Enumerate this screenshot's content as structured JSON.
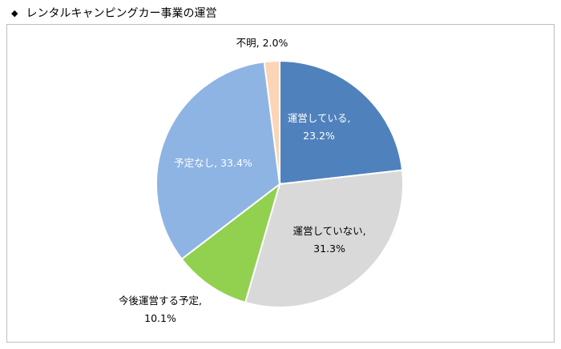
{
  "title": "レンタルキャンピングカー事業の運営",
  "title_bullet": "◆",
  "chart_data": {
    "type": "pie",
    "title": "レンタルキャンピングカー事業の運営",
    "start_angle_deg": 0,
    "direction": "clockwise",
    "slices": [
      {
        "label": "運営している",
        "value": 23.2,
        "value_text": "23.2%",
        "color": "#4f81bd",
        "text_color": "#ffffff",
        "label_inside": true
      },
      {
        "label": "運営していない",
        "value": 31.3,
        "value_text": "31.3%",
        "color": "#d9d9d9",
        "text_color": "#000000",
        "label_inside": true
      },
      {
        "label": "今後運営する予定",
        "value": 10.1,
        "value_text": "10.1%",
        "color": "#92d050",
        "text_color": "#000000",
        "label_inside": false
      },
      {
        "label": "予定なし",
        "value": 33.4,
        "value_text": "33.4%",
        "color": "#8eb4e3",
        "text_color": "#ffffff",
        "label_inside": true
      },
      {
        "label": "不明",
        "value": 2.0,
        "value_text": "2.0%",
        "color": "#fcd5b5",
        "text_color": "#000000",
        "label_inside": false
      }
    ]
  }
}
